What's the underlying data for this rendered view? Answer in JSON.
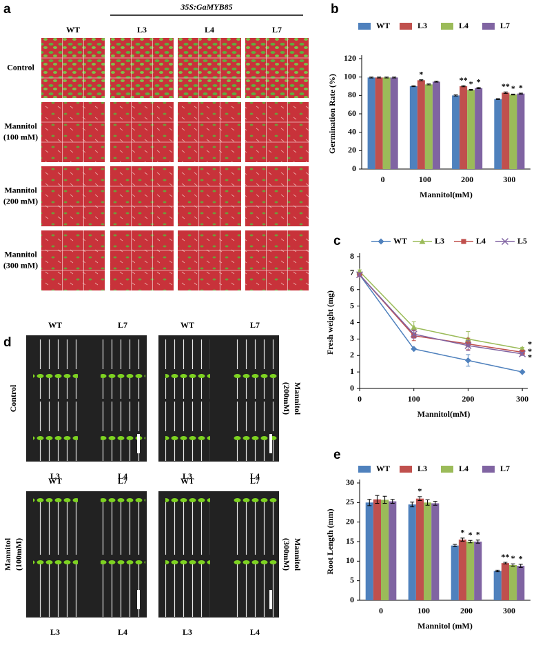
{
  "panel_a": {
    "label": "a",
    "construct": "35S:GaMYB85",
    "columns": [
      "WT",
      "L3",
      "L4",
      "L7"
    ],
    "rows": [
      [
        "Control"
      ],
      [
        "Mannitol",
        "(100 mM)"
      ],
      [
        "Mannitol",
        "(200 mM)"
      ],
      [
        "Mannitol",
        "(300 mM)"
      ]
    ]
  },
  "panel_d": {
    "label": "d",
    "photos": [
      {
        "condition": [
          "Control"
        ],
        "top": [
          "WT",
          "L7"
        ],
        "bottom": [
          "L3",
          "L4"
        ]
      },
      {
        "condition": [
          "Mannitol",
          "(200mM)"
        ],
        "top": [
          "WT",
          "L7"
        ],
        "bottom": [
          "L3",
          "L4"
        ]
      },
      {
        "condition": [
          "Mannitol",
          "(100mM)"
        ],
        "top": [
          "WT",
          "L7"
        ],
        "bottom": [
          "L3",
          "L4"
        ]
      },
      {
        "condition": [
          "Mannitol",
          "(300mM)"
        ],
        "top": [
          "WT",
          "L7"
        ],
        "bottom": [
          "L3",
          "L4"
        ]
      }
    ]
  },
  "chart_data": [
    {
      "type": "bar",
      "panel": "b",
      "categories": [
        "0",
        "100",
        "200",
        "300"
      ],
      "xlabel": "Mannitol(mM)",
      "ylabel": "Germination Rate (%)",
      "ylim": [
        0,
        120
      ],
      "yticks": [
        0,
        20,
        40,
        60,
        80,
        100,
        120
      ],
      "legend": "top",
      "series": [
        {
          "name": "WT",
          "color": "#4f81bd",
          "values": [
            99.5,
            90,
            80,
            76
          ],
          "errors": [
            0.5,
            0.5,
            0.6,
            0.5
          ],
          "significance": [
            null,
            null,
            null,
            null
          ]
        },
        {
          "name": "L3",
          "color": "#c0504d",
          "values": [
            99.5,
            96.5,
            90,
            83
          ],
          "errors": [
            0.5,
            0.5,
            0.6,
            0.8
          ],
          "significance": [
            null,
            "*",
            "**",
            "**"
          ]
        },
        {
          "name": "L4",
          "color": "#9bbb59",
          "values": [
            99.5,
            92,
            86,
            81
          ],
          "errors": [
            0.5,
            0.5,
            0.6,
            0.5
          ],
          "significance": [
            null,
            null,
            "*",
            "*"
          ]
        },
        {
          "name": "L7",
          "color": "#8064a2",
          "values": [
            99.5,
            95,
            88,
            82
          ],
          "errors": [
            0.5,
            0.5,
            0.6,
            0.5
          ],
          "significance": [
            null,
            null,
            "*",
            "*"
          ]
        }
      ]
    },
    {
      "type": "line",
      "panel": "c",
      "x": [
        0,
        100,
        200,
        300
      ],
      "xlim": [
        0,
        310
      ],
      "xticks": [
        0,
        100,
        200,
        300
      ],
      "xlabel": "Mannitol(mM)",
      "ylabel": "Fresh weight (mg)",
      "ylim": [
        0,
        8
      ],
      "yticks": [
        0,
        1,
        2,
        3,
        4,
        5,
        6,
        7,
        8
      ],
      "legend": "top",
      "series": [
        {
          "name": "WT",
          "color": "#4f81bd",
          "marker": "diamond",
          "values": [
            6.9,
            2.4,
            1.7,
            1.0
          ],
          "errors": [
            0.1,
            0.05,
            0.35,
            0.05
          ],
          "significance": [
            null,
            null,
            null,
            null
          ]
        },
        {
          "name": "L3",
          "color": "#9bbb59",
          "marker": "triangle",
          "values": [
            7.1,
            3.7,
            3.0,
            2.4
          ],
          "errors": [
            0.1,
            0.35,
            0.45,
            0.1
          ],
          "significance": [
            null,
            null,
            null,
            "*"
          ]
        },
        {
          "name": "L4",
          "color": "#c0504d",
          "marker": "square",
          "values": [
            6.9,
            3.2,
            2.7,
            2.2
          ],
          "errors": [
            0.1,
            0.3,
            0.35,
            0.1
          ],
          "significance": [
            null,
            null,
            null,
            "*"
          ]
        },
        {
          "name": "L5",
          "color": "#8064a2",
          "marker": "x",
          "values": [
            6.9,
            3.3,
            2.6,
            2.1
          ],
          "errors": [
            0.1,
            0.25,
            0.3,
            0.1
          ],
          "significance": [
            null,
            null,
            null,
            "*"
          ]
        }
      ]
    },
    {
      "type": "bar",
      "panel": "e",
      "categories": [
        "0",
        "100",
        "200",
        "300"
      ],
      "xlabel": "Mannitol (mM)",
      "ylabel": "Root Length (mm)",
      "ylim": [
        0,
        30
      ],
      "yticks": [
        0,
        5,
        10,
        15,
        20,
        25,
        30
      ],
      "legend": "top",
      "series": [
        {
          "name": "WT",
          "color": "#4f81bd",
          "values": [
            25,
            24.5,
            14,
            7.5
          ],
          "errors": [
            0.8,
            0.6,
            0.3,
            0.2
          ],
          "significance": [
            null,
            null,
            null,
            null
          ]
        },
        {
          "name": "L3",
          "color": "#c0504d",
          "values": [
            25.8,
            26,
            15.5,
            9.5
          ],
          "errors": [
            1.0,
            0.5,
            0.4,
            0.2
          ],
          "significance": [
            null,
            "*",
            "*",
            "**"
          ]
        },
        {
          "name": "L4",
          "color": "#9bbb59",
          "values": [
            25.7,
            25,
            15,
            9
          ],
          "errors": [
            0.9,
            0.7,
            0.3,
            0.3
          ],
          "significance": [
            null,
            null,
            "*",
            "*"
          ]
        },
        {
          "name": "L7",
          "color": "#8064a2",
          "values": [
            25.3,
            24.8,
            15,
            8.8
          ],
          "errors": [
            0.5,
            0.5,
            0.4,
            0.4
          ],
          "significance": [
            null,
            null,
            "*",
            "*"
          ]
        }
      ]
    }
  ]
}
